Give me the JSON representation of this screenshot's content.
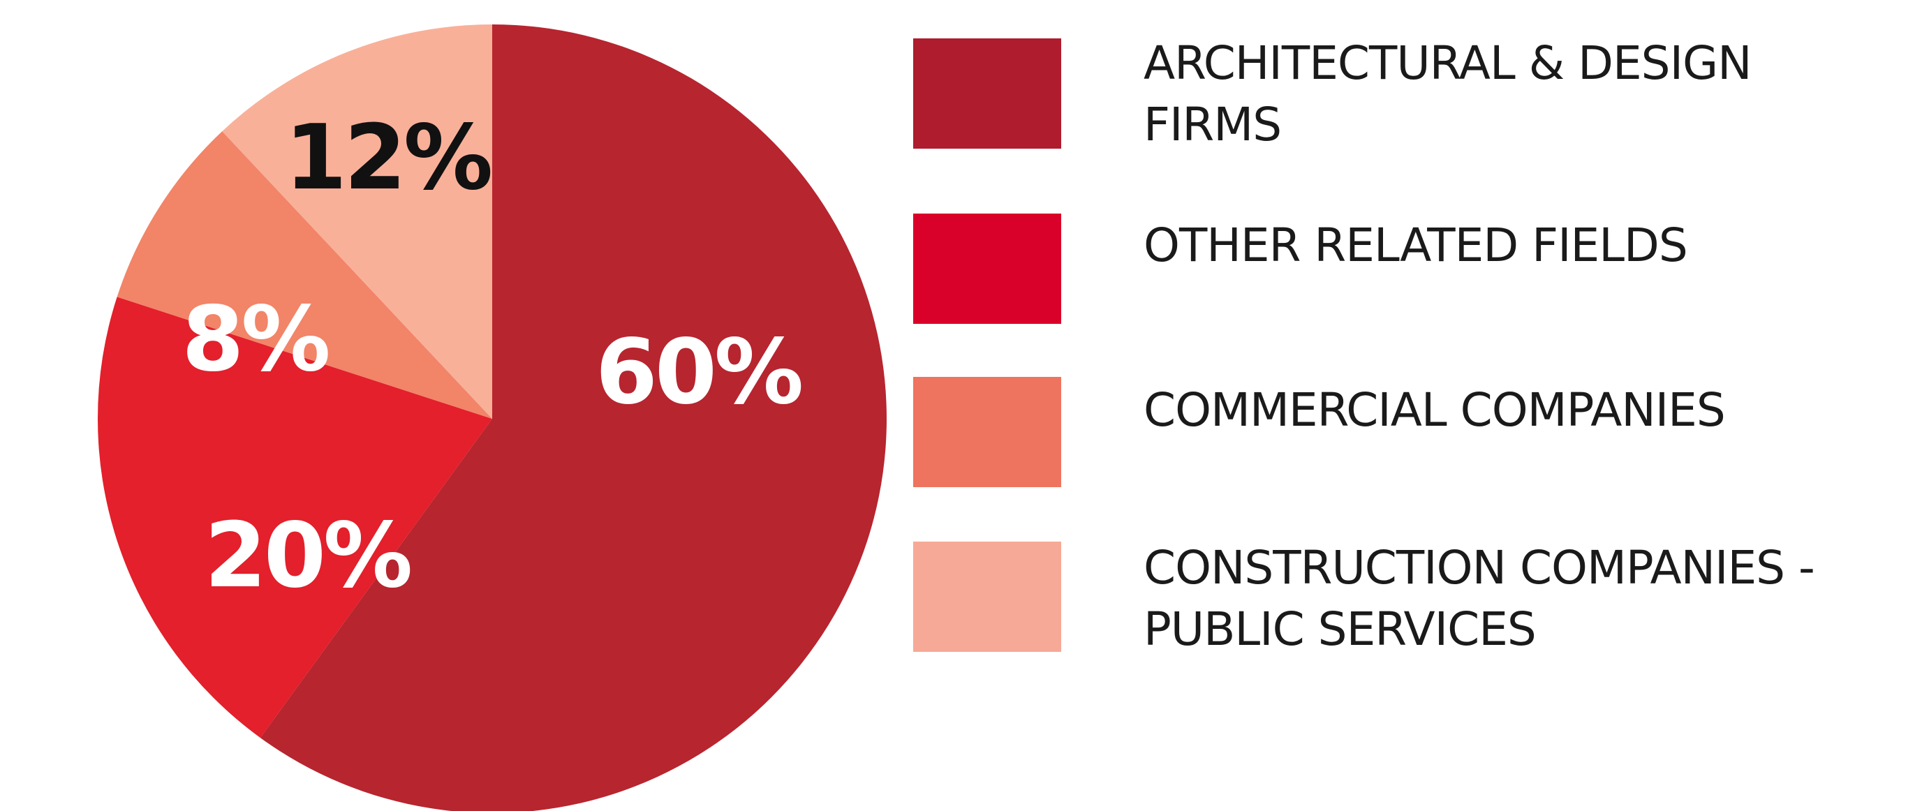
{
  "chart_data": {
    "type": "pie",
    "title": "",
    "slices": [
      {
        "label": "ARCHITECTURAL & DESIGN FIRMS",
        "value": 60,
        "value_label": "60%",
        "color": "#b7252f",
        "text_color": "#ffffff"
      },
      {
        "label": "OTHER RELATED FIELDS",
        "value": 20,
        "value_label": "20%",
        "color": "#e3202b",
        "text_color": "#ffffff"
      },
      {
        "label": "COMMERCIAL COMPANIES",
        "value": 8,
        "value_label": "8%",
        "color": "#f28468",
        "text_color": "#ffffff"
      },
      {
        "label": "CONSTRUCTION COMPANIES  - PUBLIC SERVICES",
        "value": 12,
        "value_label": "12%",
        "color": "#f9b099",
        "text_color": "#111111"
      }
    ],
    "start_angle": "12 o'clock",
    "direction": "clockwise",
    "legend_position": "right"
  },
  "legend": {
    "items": [
      {
        "label": "ARCHITECTURAL & DESIGN\nFIRMS",
        "color": "#ae1c2d",
        "icon": "square"
      },
      {
        "label": " OTHER RELATED FIELDS",
        "color": "#d9002a",
        "icon": "square"
      },
      {
        "label": "COMMERCIAL COMPANIES",
        "color": "#ee745f",
        "icon": "square"
      },
      {
        "label": "CONSTRUCTION COMPANIES  -\nPUBLIC SERVICES",
        "color": "#f6a996",
        "icon": "square"
      }
    ]
  }
}
